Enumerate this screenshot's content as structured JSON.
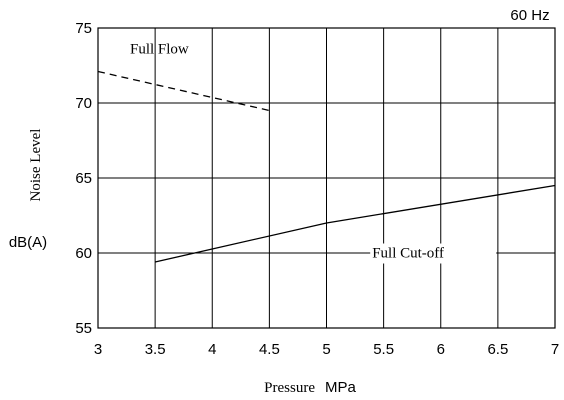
{
  "chart_data": {
    "type": "line",
    "title": "",
    "frequency_label": "60 Hz",
    "xlabel_text": "Pressure",
    "xlabel_unit": "MPa",
    "ylabel_text": "Noise Level",
    "ylabel_unit": "dB(A)",
    "xlim": [
      3,
      7
    ],
    "ylim": [
      55,
      75
    ],
    "x_ticks": [
      3,
      3.5,
      4,
      4.5,
      5,
      5.5,
      6,
      6.5,
      7
    ],
    "y_ticks": [
      55,
      60,
      65,
      70,
      75
    ],
    "grid": true,
    "series": [
      {
        "name": "Full Flow",
        "style": "dashed",
        "color": "#000000",
        "x": [
          3,
          4.5
        ],
        "y": [
          72.1,
          69.5
        ]
      },
      {
        "name": "Full Cut-off",
        "style": "solid",
        "color": "#000000",
        "x": [
          3.5,
          5,
          7
        ],
        "y": [
          59.4,
          62,
          64.5
        ]
      }
    ]
  }
}
